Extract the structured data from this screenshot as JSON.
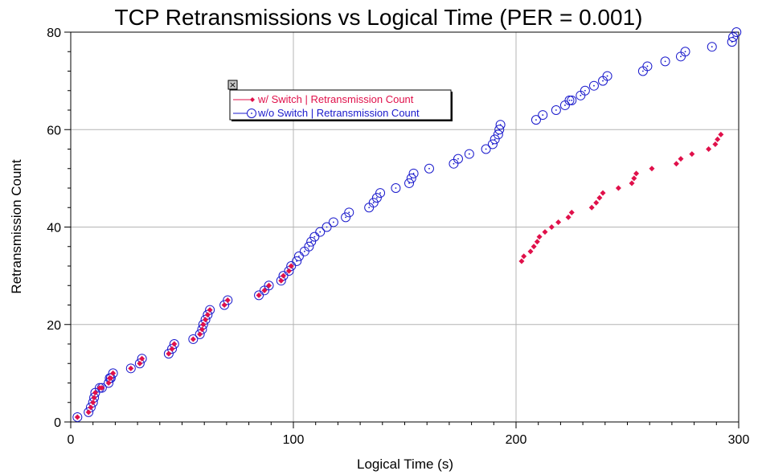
{
  "chart_data": {
    "type": "scatter",
    "title": "TCP Retransmissions vs Logical Time (PER = 0.001)",
    "xlabel": "Logical Time (s)",
    "ylabel": "Retransmission Count",
    "xlim": [
      0,
      300
    ],
    "ylim": [
      0,
      80
    ],
    "xticks": [
      0,
      100,
      200,
      300
    ],
    "yticks": [
      0,
      20,
      40,
      60,
      80
    ],
    "x_minor_step": 10,
    "y_minor_step": 4,
    "grid": true,
    "legend_position": "top-center",
    "series": [
      {
        "name": "w/ Switch | Retransmission Count",
        "color": "#e0104a",
        "marker": "filled-diamond",
        "points": [
          [
            3,
            1
          ],
          [
            8,
            2
          ],
          [
            9,
            3
          ],
          [
            10,
            4
          ],
          [
            10.5,
            5
          ],
          [
            11,
            6
          ],
          [
            13,
            7
          ],
          [
            14,
            7
          ],
          [
            17,
            8
          ],
          [
            17.5,
            9
          ],
          [
            18,
            9
          ],
          [
            19,
            10
          ],
          [
            27,
            11
          ],
          [
            31,
            12
          ],
          [
            32,
            13
          ],
          [
            44,
            14
          ],
          [
            45.5,
            15
          ],
          [
            46.5,
            16
          ],
          [
            55,
            17
          ],
          [
            58,
            18
          ],
          [
            59,
            19
          ],
          [
            59.5,
            20
          ],
          [
            60.5,
            21
          ],
          [
            61.5,
            22
          ],
          [
            62.5,
            23
          ],
          [
            69,
            24
          ],
          [
            70.5,
            25
          ],
          [
            84.5,
            26
          ],
          [
            87,
            27
          ],
          [
            89,
            28
          ],
          [
            94.5,
            29
          ],
          [
            95.5,
            30
          ],
          [
            98,
            31
          ],
          [
            99,
            32
          ],
          [
            202.5,
            33
          ],
          [
            203.5,
            34
          ],
          [
            206.5,
            35
          ],
          [
            208,
            36
          ],
          [
            209.5,
            37
          ],
          [
            210.5,
            38
          ],
          [
            213,
            39
          ],
          [
            216,
            40
          ],
          [
            219,
            41
          ],
          [
            223.5,
            42
          ],
          [
            225,
            43
          ],
          [
            234,
            44
          ],
          [
            236,
            45
          ],
          [
            237.5,
            46
          ],
          [
            239,
            47
          ],
          [
            246,
            48
          ],
          [
            252,
            49
          ],
          [
            253,
            50
          ],
          [
            254,
            51
          ],
          [
            261,
            52
          ],
          [
            272,
            53
          ],
          [
            274,
            54
          ],
          [
            279,
            55
          ],
          [
            286.5,
            56
          ],
          [
            289.5,
            57
          ],
          [
            290.5,
            58
          ],
          [
            292,
            59
          ]
        ]
      },
      {
        "name": "w/o Switch | Retransmission Count",
        "color": "#1a1acc",
        "marker": "open-circle",
        "points": [
          [
            3,
            1
          ],
          [
            8,
            2
          ],
          [
            9,
            3
          ],
          [
            10,
            4
          ],
          [
            10.5,
            5
          ],
          [
            11,
            6
          ],
          [
            13,
            7
          ],
          [
            14,
            7
          ],
          [
            17,
            8
          ],
          [
            17.5,
            9
          ],
          [
            18,
            9
          ],
          [
            19,
            10
          ],
          [
            27,
            11
          ],
          [
            31,
            12
          ],
          [
            32,
            13
          ],
          [
            44,
            14
          ],
          [
            45.5,
            15
          ],
          [
            46.5,
            16
          ],
          [
            55,
            17
          ],
          [
            58,
            18
          ],
          [
            59,
            19
          ],
          [
            59.5,
            20
          ],
          [
            60.5,
            21
          ],
          [
            61.5,
            22
          ],
          [
            62.5,
            23
          ],
          [
            69,
            24
          ],
          [
            70.5,
            25
          ],
          [
            84.5,
            26
          ],
          [
            87,
            27
          ],
          [
            89,
            28
          ],
          [
            94.5,
            29
          ],
          [
            95.5,
            30
          ],
          [
            98,
            31
          ],
          [
            99,
            32
          ],
          [
            101.5,
            33
          ],
          [
            102.5,
            34
          ],
          [
            105,
            35
          ],
          [
            107,
            36
          ],
          [
            108,
            37
          ],
          [
            109.5,
            38
          ],
          [
            112,
            39
          ],
          [
            115,
            40
          ],
          [
            118,
            41
          ],
          [
            123.5,
            42
          ],
          [
            125,
            43
          ],
          [
            134,
            44
          ],
          [
            136,
            45
          ],
          [
            137.5,
            46
          ],
          [
            139,
            47
          ],
          [
            146,
            48
          ],
          [
            152,
            49
          ],
          [
            153,
            50
          ],
          [
            154,
            51
          ],
          [
            161,
            52
          ],
          [
            172,
            53
          ],
          [
            174,
            54
          ],
          [
            179,
            55
          ],
          [
            186.5,
            56
          ],
          [
            189.5,
            57
          ],
          [
            190.5,
            58
          ],
          [
            192,
            59
          ],
          [
            192.5,
            60
          ],
          [
            193,
            61
          ],
          [
            209,
            62
          ],
          [
            212,
            63
          ],
          [
            218,
            64
          ],
          [
            222,
            65
          ],
          [
            224,
            66
          ],
          [
            225,
            66
          ],
          [
            229,
            67
          ],
          [
            231,
            68
          ],
          [
            235,
            69
          ],
          [
            239,
            70
          ],
          [
            241,
            71
          ],
          [
            257,
            72
          ],
          [
            259,
            73
          ],
          [
            267,
            74
          ],
          [
            274,
            75
          ],
          [
            276,
            76
          ],
          [
            288,
            77
          ],
          [
            297,
            78
          ],
          [
            297.5,
            79
          ],
          [
            299,
            80
          ]
        ]
      }
    ]
  },
  "legend": {
    "close_glyph": "×"
  }
}
